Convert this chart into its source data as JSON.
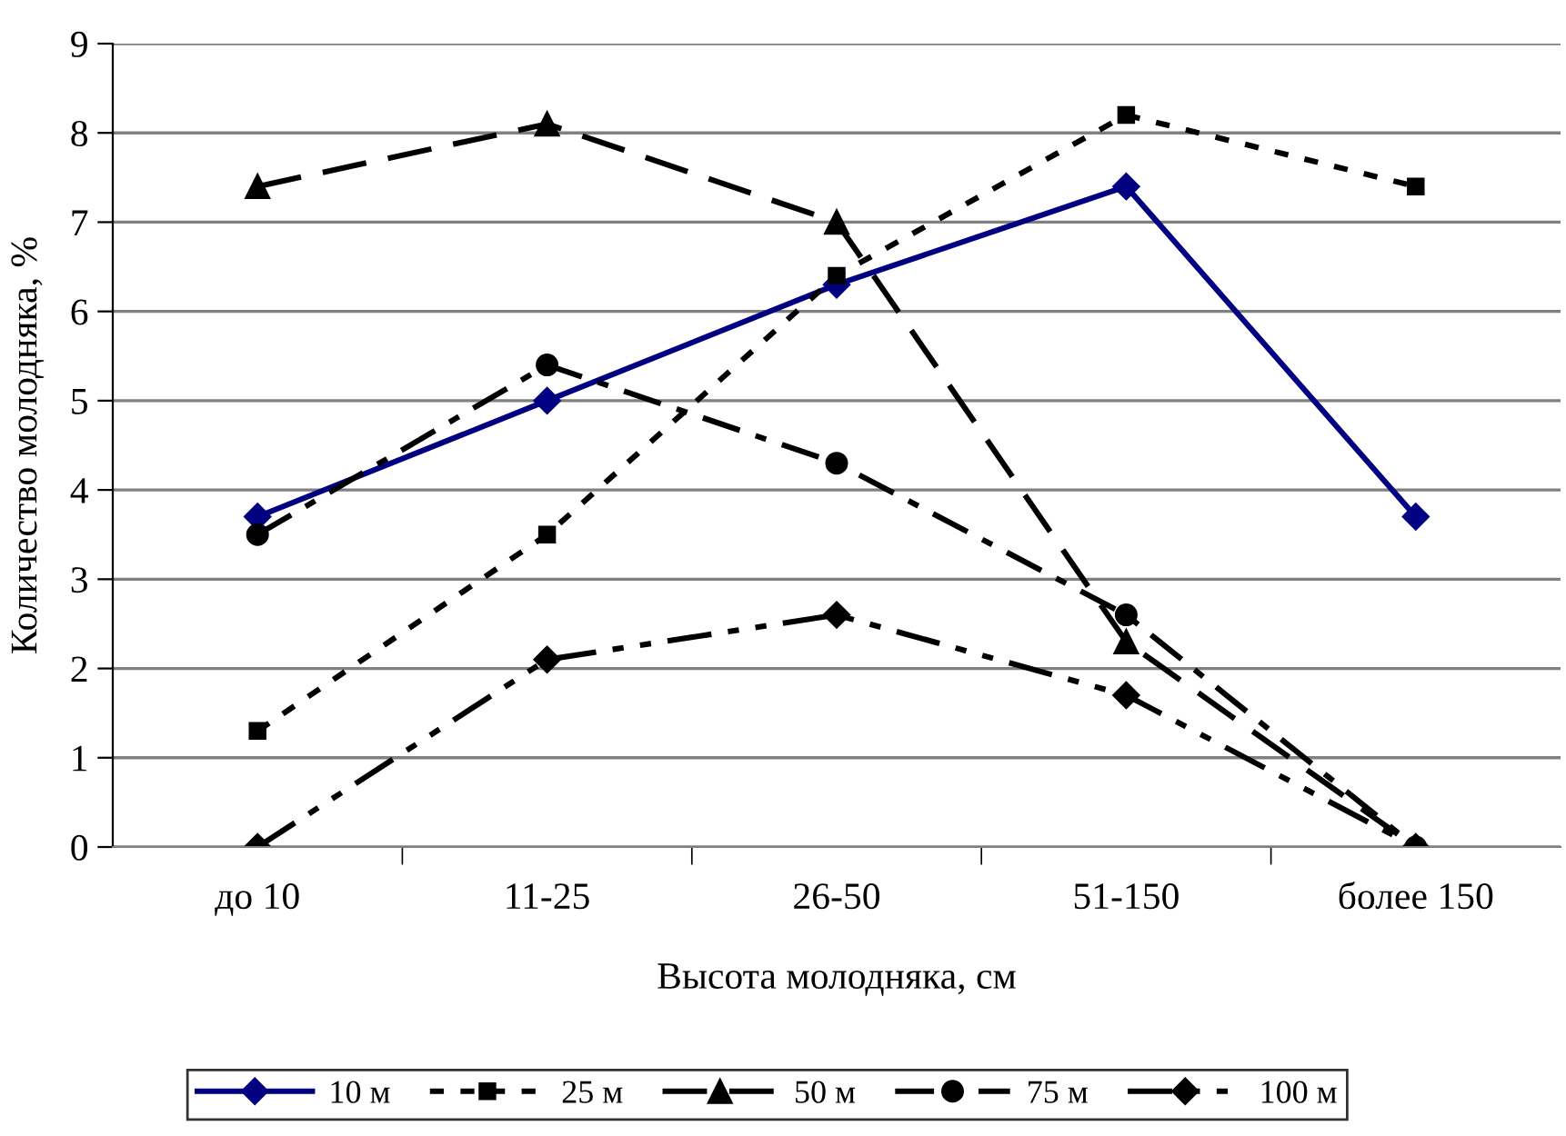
{
  "chart_data": {
    "type": "line",
    "xlabel": "Высота молодняка, см",
    "ylabel": "Количество молодняка, %",
    "categories": [
      "до 10",
      "11-25",
      "26-50",
      "51-150",
      "более 150"
    ],
    "series": [
      {
        "name": "10 м",
        "color": "#000080",
        "marker": "diamond",
        "line_style": "solid",
        "values": [
          3.7,
          5.0,
          6.3,
          7.4,
          3.7
        ]
      },
      {
        "name": "25 м",
        "color": "#000000",
        "marker": "square",
        "line_style": "dotted",
        "values": [
          1.3,
          3.5,
          6.4,
          8.2,
          7.4
        ]
      },
      {
        "name": "50 м",
        "color": "#000000",
        "marker": "triangle",
        "line_style": "dashed",
        "values": [
          7.4,
          8.1,
          7.0,
          2.3,
          0.0
        ]
      },
      {
        "name": "75 м",
        "color": "#000000",
        "marker": "circle",
        "line_style": "dashdot",
        "values": [
          3.5,
          5.4,
          4.3,
          2.6,
          0.0
        ]
      },
      {
        "name": "100 м",
        "color": "#000000",
        "marker": "diamond",
        "line_style": "dashdotdot",
        "values": [
          0.0,
          2.1,
          2.6,
          1.7,
          0.0
        ]
      }
    ],
    "ylim": [
      0,
      9
    ],
    "yticks": [
      0,
      1,
      2,
      3,
      4,
      5,
      6,
      7,
      8,
      9
    ],
    "grid": "y",
    "legend": "bottom"
  }
}
